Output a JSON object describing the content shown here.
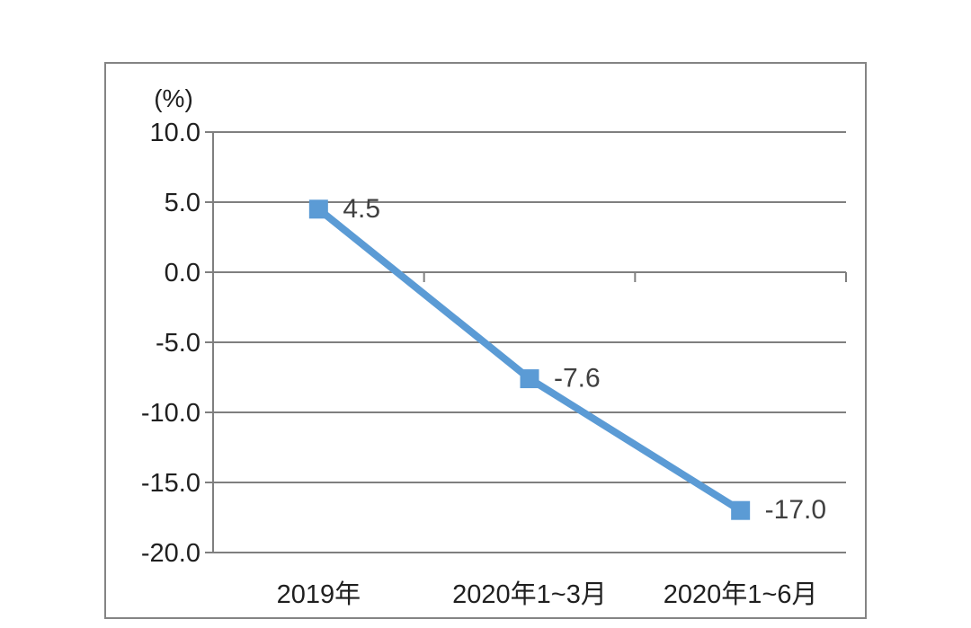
{
  "chart_data": {
    "type": "line",
    "title": "",
    "unit_label": "(%)",
    "categories": [
      "2019年",
      "2020年1~3月",
      "2020年1~6月"
    ],
    "series": [
      {
        "values": [
          4.5,
          -7.6,
          -17.0
        ],
        "data_labels": [
          "4.5",
          "-7.6",
          "-17.0"
        ],
        "marker": "square"
      }
    ],
    "y_ticks": [
      {
        "value": 10.0,
        "label": "10.0"
      },
      {
        "value": 5.0,
        "label": "5.0"
      },
      {
        "value": 0.0,
        "label": "0.0"
      },
      {
        "value": -5.0,
        "label": "-5.0"
      },
      {
        "value": -10.0,
        "label": "-10.0"
      },
      {
        "value": -15.0,
        "label": "-15.0"
      },
      {
        "value": -20.0,
        "label": "-20.0"
      }
    ],
    "ylim": [
      -20,
      10
    ],
    "xlabel": "",
    "ylabel": "",
    "grid": true,
    "legend": "none",
    "category_axis_position": "zero-line",
    "colors": {
      "series": "#5B9BD5",
      "grid": "#7F7F7F",
      "axis": "#7F7F7F",
      "frame_border": "#848484",
      "tick_label": "#1f1f1f",
      "category_label": "#1f1f1f",
      "data_label": "#404040",
      "background": "#ffffff"
    }
  }
}
